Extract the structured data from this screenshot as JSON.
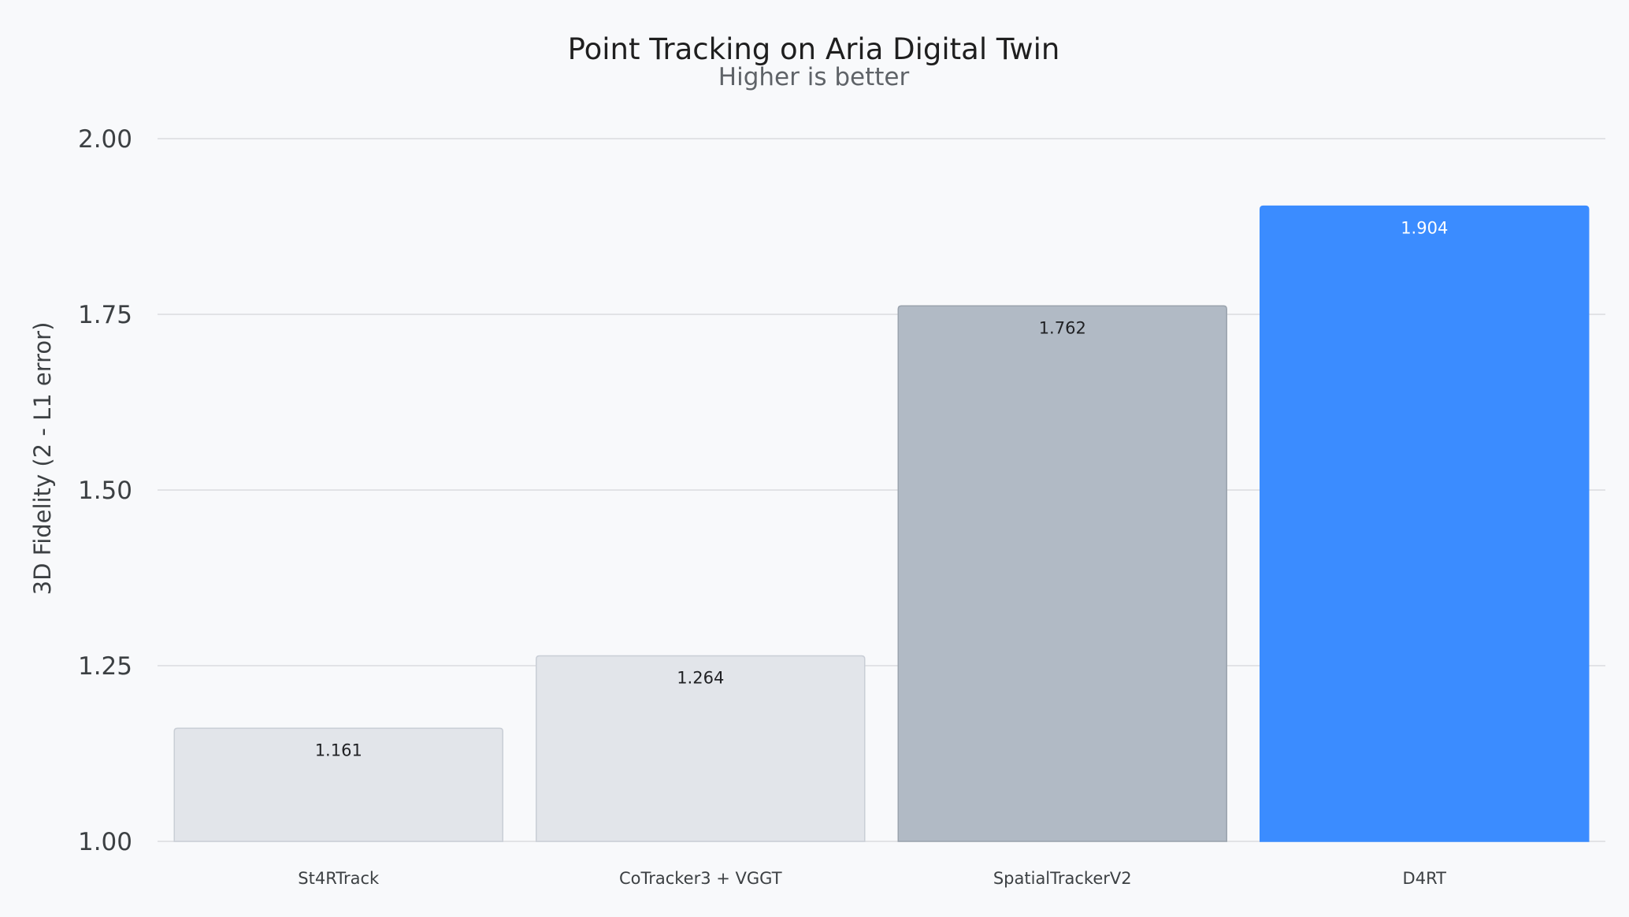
{
  "chart_data": {
    "type": "bar",
    "title": "Point Tracking on Aria Digital Twin",
    "subtitle": "Higher is better",
    "xlabel": "",
    "ylabel": "3D Fidelity (2 - L1 error)",
    "categories": [
      "St4RTrack",
      "CoTracker3 + VGGT",
      "SpatialTrackerV2",
      "D4RT"
    ],
    "values": [
      1.161,
      1.264,
      1.762,
      1.904
    ],
    "data_labels": [
      "1.161",
      "1.264",
      "1.762",
      "1.904"
    ],
    "ylim": [
      1.0,
      2.0
    ],
    "yticks": [
      1.0,
      1.25,
      1.5,
      1.75,
      2.0
    ],
    "ytick_labels": [
      "1.00",
      "1.25",
      "1.50",
      "1.75",
      "2.00"
    ],
    "grid": true,
    "legend": "none",
    "bar_colors": [
      "#e2e5ea",
      "#e2e5ea",
      "#b1bac5",
      "#3b8cff"
    ],
    "bar_edge_colors": [
      "#c9ced6",
      "#c9ced6",
      "#9aa3ad",
      "#3b8cff"
    ],
    "label_colors": [
      "#202124",
      "#202124",
      "#202124",
      "#ffffff"
    ]
  }
}
